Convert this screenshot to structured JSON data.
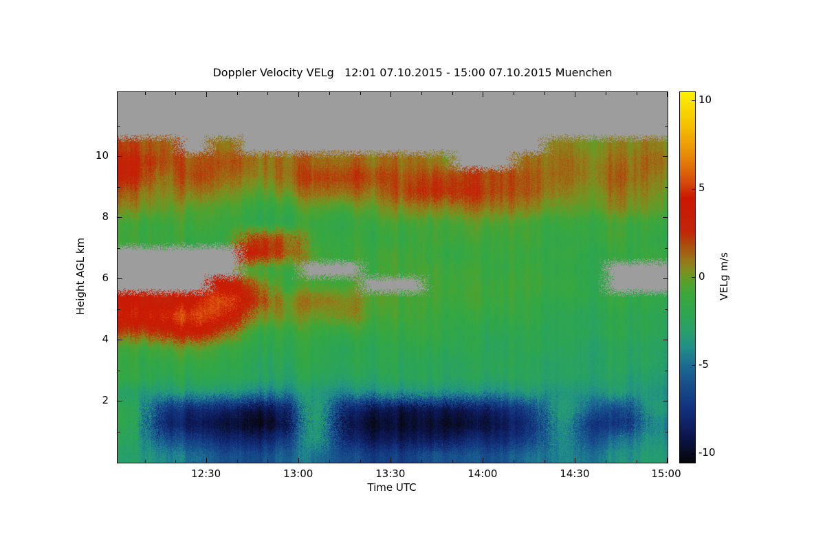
{
  "title": "Doppler Velocity VELg   12:01 07.10.2015 - 15:00 07.10.2015 Muenchen",
  "axes": {
    "x": {
      "label": "Time UTC",
      "ticks": [
        {
          "label": "12:30",
          "minute": 30
        },
        {
          "label": "13:00",
          "minute": 60
        },
        {
          "label": "13:30",
          "minute": 90
        },
        {
          "label": "14:00",
          "minute": 120
        },
        {
          "label": "14:30",
          "minute": 150
        },
        {
          "label": "15:00",
          "minute": 180
        }
      ],
      "minor_step_minutes": 10
    },
    "y": {
      "label": "Height AGL km",
      "ticks": [
        {
          "label": "2",
          "km": 2
        },
        {
          "label": "4",
          "km": 4
        },
        {
          "label": "6",
          "km": 6
        },
        {
          "label": "8",
          "km": 8
        },
        {
          "label": "10",
          "km": 10
        }
      ],
      "minor_kms": [
        1,
        3,
        5,
        7,
        9,
        11
      ]
    }
  },
  "colorbar": {
    "label": "VELg m/s",
    "ticks": [
      {
        "label": "10",
        "value": 10
      },
      {
        "label": "5",
        "value": 5
      },
      {
        "label": "0",
        "value": 0
      },
      {
        "label": "-5",
        "value": -5
      },
      {
        "label": "-10",
        "value": -10
      }
    ]
  },
  "chart_data": {
    "type": "heatmap",
    "title": "Doppler Velocity VELg   12:01 07.10.2015 - 15:00 07.10.2015 Muenchen",
    "site": "Muenchen",
    "date": "07.10.2015",
    "time_span_utc": [
      "12:01",
      "15:00"
    ],
    "xlabel": "Time UTC",
    "ylabel": "Height AGL km",
    "colorbar_label": "VELg m/s",
    "x_range_minutes": [
      1,
      180
    ],
    "y_range_km": [
      0,
      12.1
    ],
    "value_range": [
      -10.5,
      10.5
    ],
    "value_unit": "m/s",
    "no_data_color": "#9d9d9d",
    "colormap_stops": [
      [
        -10.5,
        "#06060a"
      ],
      [
        -9,
        "#0c1650"
      ],
      [
        -7.5,
        "#12307c"
      ],
      [
        -6,
        "#17518c"
      ],
      [
        -5,
        "#1b6b93"
      ],
      [
        -4,
        "#218f88"
      ],
      [
        -3,
        "#27a06b"
      ],
      [
        -2,
        "#2ea64f"
      ],
      [
        -1,
        "#3aa83c"
      ],
      [
        -0.3,
        "#57a02c"
      ],
      [
        0.3,
        "#7c9120"
      ],
      [
        1,
        "#987618"
      ],
      [
        1.8,
        "#ad4e0e"
      ],
      [
        2.6,
        "#c22507"
      ],
      [
        4.5,
        "#cc1703"
      ],
      [
        5.5,
        "#d84f0c"
      ],
      [
        7,
        "#e98c07"
      ],
      [
        8.5,
        "#f5bc02"
      ],
      [
        10.5,
        "#fcf000"
      ]
    ],
    "columns_time_utc": [
      "12:05",
      "12:15",
      "12:25",
      "12:35",
      "12:45",
      "12:55",
      "13:05",
      "13:15",
      "13:25",
      "13:35",
      "13:45",
      "13:55",
      "14:05",
      "14:15",
      "14:25",
      "14:35",
      "14:45",
      "14:55"
    ],
    "rows_height_km": [
      11.75,
      11.25,
      10.75,
      10.25,
      9.75,
      9.25,
      8.75,
      8.25,
      7.75,
      7.25,
      6.75,
      6.25,
      5.75,
      5.25,
      4.75,
      4.25,
      3.75,
      3.25,
      2.75,
      2.25,
      1.75,
      1.25,
      0.75,
      0.25
    ],
    "values": [
      [
        null,
        null,
        null,
        null,
        null,
        null,
        null,
        null,
        null,
        null,
        null,
        null,
        null,
        null,
        null,
        null,
        null,
        null
      ],
      [
        null,
        null,
        null,
        null,
        null,
        null,
        null,
        null,
        null,
        null,
        null,
        null,
        null,
        null,
        null,
        null,
        null,
        null
      ],
      [
        null,
        null,
        null,
        null,
        null,
        null,
        null,
        null,
        null,
        null,
        null,
        null,
        null,
        null,
        null,
        null,
        null,
        null
      ],
      [
        2,
        1.5,
        null,
        1,
        null,
        null,
        null,
        null,
        null,
        null,
        null,
        null,
        null,
        null,
        1,
        0.5,
        0.5,
        1
      ],
      [
        3,
        2,
        1.5,
        2,
        1.5,
        1.5,
        1,
        1.5,
        1,
        1,
        0.5,
        null,
        null,
        1,
        1.5,
        1,
        1,
        1.5
      ],
      [
        3,
        1,
        2,
        1.5,
        1,
        1.5,
        2,
        2.5,
        2,
        1.5,
        2,
        2,
        2,
        1.5,
        1.5,
        1,
        1.5,
        1
      ],
      [
        1.5,
        0.5,
        1,
        0.5,
        0,
        0.5,
        1,
        1.5,
        1,
        2,
        2.5,
        2.5,
        2,
        1.5,
        1,
        0.5,
        1,
        0.5
      ],
      [
        0.5,
        0,
        -0.5,
        -0.5,
        -1,
        -1,
        -0.5,
        -0.5,
        0,
        0.5,
        0.5,
        1,
        1,
        0.5,
        0,
        0,
        0.5,
        0
      ],
      [
        -1,
        -1,
        -1,
        -1,
        -1.5,
        -1.5,
        -1.5,
        -1.5,
        -1,
        -1,
        -1,
        -0.5,
        -0.5,
        -1,
        -1,
        -1,
        -1,
        -1
      ],
      [
        -1,
        -1,
        -1.5,
        -1.5,
        3,
        2,
        -1.5,
        -1,
        -1.5,
        -1.5,
        -1,
        -1,
        -1,
        -1,
        -1.5,
        -1,
        -1,
        -1.5
      ],
      [
        null,
        null,
        null,
        null,
        4,
        2,
        -1,
        -1,
        -1,
        -1,
        -1.5,
        -1.5,
        -1,
        -1.5,
        -1,
        -1.5,
        -1.5,
        -1
      ],
      [
        null,
        null,
        null,
        null,
        -0.5,
        -1,
        null,
        null,
        -1,
        -1,
        -1,
        -1,
        -1.5,
        -1,
        -1.5,
        -1.5,
        null,
        null
      ],
      [
        null,
        null,
        null,
        4,
        2,
        -1,
        -1,
        -0.5,
        null,
        null,
        -1,
        -1,
        -1,
        -1,
        -1,
        -1.5,
        null,
        null
      ],
      [
        4,
        3,
        4,
        6,
        3,
        0.5,
        1,
        1,
        -0.5,
        -1,
        -1,
        -1,
        -1,
        -1.5,
        -1.5,
        -1.5,
        -1.5,
        -1.5
      ],
      [
        4.5,
        5,
        5.5,
        5,
        1,
        0.5,
        -0.5,
        1,
        -1,
        -1,
        -1.5,
        -1.5,
        -1.5,
        -1.5,
        -2,
        -2,
        -2,
        -2
      ],
      [
        2,
        3,
        4,
        2,
        -1,
        -1,
        -1.5,
        -1,
        -1.5,
        -1.5,
        -1.5,
        -2,
        -2,
        -2,
        -2,
        -2,
        -2,
        -2
      ],
      [
        -1,
        -0.5,
        0,
        -1,
        -1.5,
        -1.5,
        -2,
        -2,
        -2,
        -2,
        -2,
        -2,
        -2.5,
        -2,
        -2,
        -2.5,
        -2.5,
        -2.5
      ],
      [
        -1.5,
        -1.5,
        -1.5,
        -1.5,
        -2,
        -2,
        -2,
        -2,
        -2,
        -2.5,
        -2.5,
        -2.5,
        -2,
        -2.5,
        -2.5,
        -2.5,
        -2.5,
        -2.5
      ],
      [
        -1.5,
        -2,
        -2,
        -2,
        -2,
        -2.5,
        -2.5,
        -2.5,
        -2.5,
        -2.5,
        -2.5,
        -2.5,
        -2.5,
        -2.5,
        -2.5,
        -2.5,
        -3,
        -3
      ],
      [
        -3,
        -3.5,
        -3.5,
        -3.5,
        -4,
        -4,
        -3.5,
        -4,
        -4,
        -4,
        -4,
        -4,
        -4,
        -3.5,
        -3.5,
        -3.5,
        -3.5,
        -3.5
      ],
      [
        -2,
        -7,
        -8,
        -8,
        -9,
        -8,
        -2.5,
        -8,
        -9,
        -9.5,
        -9,
        -9,
        -8,
        -7,
        -2.5,
        -5,
        -7,
        -3
      ],
      [
        -2,
        -8,
        -9,
        -9.5,
        -10,
        -9,
        -2.5,
        -9,
        -10,
        -10,
        -10,
        -10,
        -9,
        -8,
        -3,
        -7,
        -8,
        -4
      ],
      [
        -2.5,
        -6,
        -7,
        -8,
        -8,
        -7,
        -3,
        -8,
        -9,
        -9,
        -9,
        -8,
        -8,
        -7,
        -3.5,
        -6,
        -5,
        -3.5
      ],
      [
        -3,
        -4,
        -5,
        -6,
        -6,
        -5,
        -5,
        -6,
        -7,
        -7,
        -6,
        -6,
        -6,
        -5,
        -4,
        -4.5,
        -4,
        -3
      ]
    ]
  }
}
